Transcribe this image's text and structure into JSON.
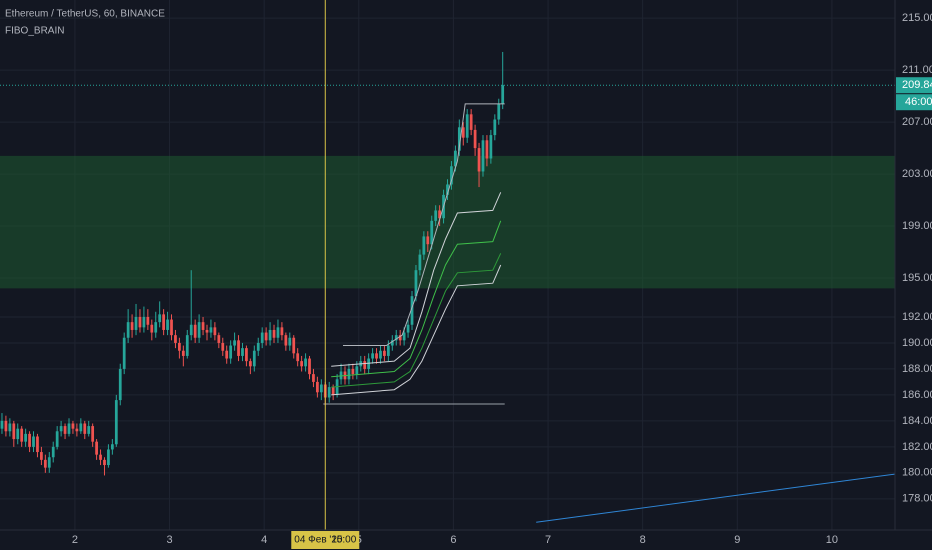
{
  "chart_data": {
    "type": "candlestick",
    "title": "Ethereum / TetherUS, 60, BINANCE",
    "subtitle": "FIBO_BRAIN",
    "up_color": "#26a69a",
    "down_color": "#ef5350",
    "xlim": [
      0,
      227
    ],
    "ylim": [
      175.6,
      216.4
    ],
    "grid": true,
    "xticks": [
      {
        "value": 19,
        "label": "2"
      },
      {
        "value": 43,
        "label": "3"
      },
      {
        "value": 67,
        "label": "4"
      },
      {
        "value": 91,
        "label": "5"
      },
      {
        "value": 115,
        "label": "6"
      },
      {
        "value": 139,
        "label": "7"
      },
      {
        "value": 163,
        "label": "8"
      },
      {
        "value": 187,
        "label": "9"
      },
      {
        "value": 211,
        "label": "10"
      }
    ],
    "yticks": [
      {
        "value": 178,
        "label": "178.00"
      },
      {
        "value": 180,
        "label": "180.00"
      },
      {
        "value": 182,
        "label": "182.00"
      },
      {
        "value": 184,
        "label": "184.00"
      },
      {
        "value": 186,
        "label": "186.00"
      },
      {
        "value": 188,
        "label": "188.00"
      },
      {
        "value": 190,
        "label": "190.00"
      },
      {
        "value": 192,
        "label": "192.00"
      },
      {
        "value": 195,
        "label": "195.00"
      },
      {
        "value": 199,
        "label": "199.00"
      },
      {
        "value": 203,
        "label": "203.00"
      },
      {
        "value": 207,
        "label": "207.00"
      },
      {
        "value": 211,
        "label": "211.00"
      },
      {
        "value": 215,
        "label": "215.00"
      }
    ],
    "candles": [
      [
        183.4,
        184.6,
        183.0,
        184.0
      ],
      [
        184.0,
        184.4,
        182.8,
        183.2
      ],
      [
        183.2,
        184.2,
        182.8,
        183.8
      ],
      [
        183.8,
        184.0,
        182.0,
        182.6
      ],
      [
        182.6,
        183.8,
        182.2,
        183.4
      ],
      [
        183.4,
        183.6,
        182.0,
        182.4
      ],
      [
        182.4,
        183.4,
        182.0,
        183.0
      ],
      [
        183.0,
        183.2,
        181.6,
        182.0
      ],
      [
        182.0,
        183.2,
        181.6,
        182.8
      ],
      [
        182.8,
        183.0,
        181.2,
        181.6
      ],
      [
        181.6,
        182.0,
        180.6,
        181.0
      ],
      [
        181.0,
        181.4,
        180.0,
        180.4
      ],
      [
        180.4,
        181.6,
        180.0,
        181.2
      ],
      [
        181.2,
        182.4,
        180.8,
        182.0
      ],
      [
        182.0,
        183.6,
        181.8,
        183.2
      ],
      [
        183.2,
        184.0,
        182.8,
        183.6
      ],
      [
        183.6,
        183.8,
        182.6,
        183.0
      ],
      [
        183.0,
        184.2,
        182.8,
        183.8
      ],
      [
        183.8,
        184.0,
        183.0,
        183.4
      ],
      [
        183.4,
        183.8,
        182.8,
        183.2
      ],
      [
        183.2,
        184.2,
        183.0,
        183.8
      ],
      [
        183.8,
        184.0,
        182.6,
        183.0
      ],
      [
        183.0,
        184.0,
        182.8,
        183.6
      ],
      [
        183.6,
        183.8,
        182.0,
        182.4
      ],
      [
        182.4,
        182.6,
        181.0,
        181.4
      ],
      [
        181.4,
        181.8,
        180.6,
        181.0
      ],
      [
        181.0,
        181.2,
        179.8,
        180.6
      ],
      [
        180.6,
        182.2,
        180.4,
        181.8
      ],
      [
        181.8,
        182.6,
        181.4,
        182.2
      ],
      [
        182.2,
        186.0,
        182.0,
        185.6
      ],
      [
        185.6,
        188.4,
        185.2,
        188.0
      ],
      [
        188.0,
        190.8,
        187.6,
        190.4
      ],
      [
        190.4,
        192.6,
        190.0,
        191.6
      ],
      [
        191.6,
        192.2,
        190.4,
        191.0
      ],
      [
        191.0,
        193.0,
        190.6,
        192.0
      ],
      [
        192.0,
        192.6,
        190.8,
        191.2
      ],
      [
        191.2,
        192.8,
        190.8,
        192.0
      ],
      [
        192.0,
        192.6,
        191.0,
        191.4
      ],
      [
        191.4,
        191.8,
        190.2,
        190.8
      ],
      [
        190.8,
        192.4,
        190.4,
        191.6
      ],
      [
        191.6,
        193.2,
        191.2,
        192.2
      ],
      [
        192.2,
        192.6,
        190.6,
        191.0
      ],
      [
        191.0,
        192.4,
        190.6,
        191.8
      ],
      [
        191.8,
        192.2,
        190.2,
        190.6
      ],
      [
        190.6,
        191.0,
        189.6,
        190.0
      ],
      [
        190.0,
        190.4,
        188.8,
        189.4
      ],
      [
        189.4,
        189.8,
        188.2,
        189.0
      ],
      [
        189.0,
        191.0,
        188.8,
        190.6
      ],
      [
        190.6,
        195.6,
        190.2,
        191.4
      ],
      [
        191.4,
        191.8,
        190.0,
        190.4
      ],
      [
        190.4,
        192.2,
        190.0,
        191.6
      ],
      [
        191.6,
        192.0,
        190.6,
        191.0
      ],
      [
        191.0,
        191.4,
        190.2,
        190.8
      ],
      [
        190.8,
        191.8,
        190.4,
        191.2
      ],
      [
        191.2,
        191.6,
        190.2,
        190.6
      ],
      [
        190.6,
        190.8,
        189.6,
        190.0
      ],
      [
        190.0,
        190.4,
        189.0,
        189.4
      ],
      [
        189.4,
        189.8,
        188.4,
        188.8
      ],
      [
        188.8,
        190.2,
        188.4,
        189.8
      ],
      [
        189.8,
        190.8,
        189.4,
        190.2
      ],
      [
        190.2,
        190.6,
        188.6,
        189.0
      ],
      [
        189.0,
        190.0,
        188.6,
        189.6
      ],
      [
        189.6,
        189.8,
        188.2,
        188.6
      ],
      [
        188.6,
        188.8,
        187.6,
        188.2
      ],
      [
        188.2,
        189.8,
        187.8,
        189.4
      ],
      [
        189.4,
        190.4,
        189.0,
        190.0
      ],
      [
        190.0,
        191.2,
        189.6,
        190.8
      ],
      [
        190.8,
        191.2,
        189.8,
        190.2
      ],
      [
        190.2,
        191.6,
        189.8,
        191.0
      ],
      [
        191.0,
        191.4,
        190.0,
        190.4
      ],
      [
        190.4,
        191.8,
        190.0,
        191.2
      ],
      [
        191.2,
        191.6,
        190.2,
        190.6
      ],
      [
        190.6,
        190.8,
        189.4,
        189.8
      ],
      [
        189.8,
        190.8,
        189.4,
        190.4
      ],
      [
        190.4,
        190.6,
        188.8,
        189.2
      ],
      [
        189.2,
        189.6,
        188.2,
        188.6
      ],
      [
        188.6,
        189.0,
        187.8,
        188.2
      ],
      [
        188.2,
        189.2,
        187.8,
        188.8
      ],
      [
        188.8,
        189.0,
        187.2,
        187.6
      ],
      [
        187.6,
        188.0,
        186.6,
        187.0
      ],
      [
        187.0,
        187.4,
        185.8,
        186.2
      ],
      [
        186.2,
        187.2,
        185.6,
        186.8
      ],
      [
        186.8,
        187.0,
        185.2,
        185.8
      ],
      [
        185.8,
        187.0,
        185.4,
        186.6
      ],
      [
        186.6,
        186.8,
        185.6,
        186.0
      ],
      [
        186.0,
        187.6,
        185.8,
        187.2
      ],
      [
        187.2,
        188.4,
        186.8,
        187.8
      ],
      [
        187.8,
        188.2,
        186.8,
        187.2
      ],
      [
        187.2,
        188.4,
        186.8,
        188.0
      ],
      [
        188.0,
        188.4,
        187.2,
        187.6
      ],
      [
        187.6,
        188.6,
        187.2,
        188.2
      ],
      [
        188.2,
        189.0,
        187.8,
        188.6
      ],
      [
        188.6,
        189.0,
        187.6,
        188.0
      ],
      [
        188.0,
        189.2,
        187.6,
        188.8
      ],
      [
        188.8,
        189.6,
        188.4,
        189.2
      ],
      [
        189.2,
        189.6,
        188.4,
        188.8
      ],
      [
        188.8,
        189.8,
        188.4,
        189.4
      ],
      [
        189.4,
        189.8,
        188.6,
        189.0
      ],
      [
        189.0,
        190.2,
        188.6,
        189.8
      ],
      [
        189.8,
        190.6,
        189.4,
        190.2
      ],
      [
        190.2,
        191.0,
        189.8,
        190.6
      ],
      [
        190.6,
        191.0,
        189.8,
        190.2
      ],
      [
        190.2,
        191.2,
        189.8,
        190.8
      ],
      [
        190.8,
        191.8,
        190.4,
        191.4
      ],
      [
        191.4,
        194.0,
        191.0,
        193.6
      ],
      [
        193.6,
        196.0,
        193.2,
        195.6
      ],
      [
        195.6,
        197.2,
        195.2,
        196.8
      ],
      [
        196.8,
        198.6,
        196.4,
        198.2
      ],
      [
        198.2,
        198.6,
        197.0,
        197.6
      ],
      [
        197.6,
        199.8,
        197.2,
        199.4
      ],
      [
        199.4,
        200.6,
        199.0,
        200.2
      ],
      [
        200.2,
        200.6,
        199.0,
        199.6
      ],
      [
        199.6,
        201.8,
        199.2,
        201.4
      ],
      [
        201.4,
        202.6,
        201.0,
        202.2
      ],
      [
        202.2,
        204.0,
        201.8,
        203.6
      ],
      [
        203.6,
        205.2,
        203.2,
        204.8
      ],
      [
        204.8,
        207.2,
        204.4,
        206.6
      ],
      [
        206.6,
        207.0,
        205.2,
        205.8
      ],
      [
        205.8,
        208.0,
        205.4,
        207.6
      ],
      [
        207.6,
        208.0,
        206.0,
        206.4
      ],
      [
        206.4,
        206.8,
        204.4,
        205.0
      ],
      [
        205.0,
        205.4,
        202.0,
        203.2
      ],
      [
        203.2,
        206.0,
        202.8,
        205.6
      ],
      [
        205.6,
        206.0,
        203.6,
        204.2
      ],
      [
        204.2,
        206.4,
        203.8,
        206.0
      ],
      [
        206.0,
        207.6,
        205.6,
        207.2
      ],
      [
        207.2,
        208.8,
        206.8,
        208.4
      ],
      [
        208.4,
        212.4,
        208.0,
        209.84
      ]
    ],
    "zone": {
      "values": [
        194.2,
        204.4
      ],
      "color": "#1d5a2f"
    },
    "lines": [
      {
        "color": "#9aa0a8",
        "x": [
          82,
          128
        ],
        "values": [
          185.3,
          185.3
        ]
      },
      {
        "color": "#b0b4bb",
        "x": [
          87,
          98,
          102,
          106,
          110,
          113,
          116,
          118,
          128
        ],
        "values": [
          189.8,
          189.8,
          190.6,
          194,
          198,
          201,
          204,
          208.4,
          208.4
        ]
      },
      {
        "color": "#d0d3d8",
        "x": [
          84,
          100,
          104,
          107,
          110,
          113,
          116,
          125,
          127
        ],
        "values": [
          188.2,
          188.6,
          189.6,
          192.4,
          195.6,
          198.0,
          200.0,
          200.2,
          201.6
        ]
      },
      {
        "color": "#3fbf4a",
        "x": [
          84,
          100,
          104,
          107,
          110,
          113,
          116,
          125,
          127
        ],
        "values": [
          187.4,
          187.8,
          188.8,
          191.0,
          193.6,
          196.0,
          197.6,
          197.8,
          199.4
        ]
      },
      {
        "color": "#2e9b3a",
        "x": [
          84,
          100,
          104,
          107,
          110,
          113,
          116,
          125,
          127
        ],
        "values": [
          186.6,
          187.0,
          187.8,
          189.6,
          191.8,
          194.0,
          195.4,
          195.6,
          196.9
        ]
      },
      {
        "color": "#d0d3d8",
        "x": [
          84,
          100,
          104,
          107,
          110,
          113,
          116,
          125,
          127
        ],
        "values": [
          186.0,
          186.4,
          187.2,
          188.6,
          190.6,
          192.6,
          194.4,
          194.6,
          196.0
        ]
      },
      {
        "color": "#2f86d6",
        "x": [
          136,
          227
        ],
        "values": [
          176.2,
          179.9
        ]
      }
    ],
    "last_price": 209.84,
    "last_price_color": "#26a69a",
    "countdown": "46:00",
    "crosshair": {
      "x": 82,
      "label": "04 Фев '20",
      "time": "15:00",
      "color": "#d8c447"
    }
  }
}
